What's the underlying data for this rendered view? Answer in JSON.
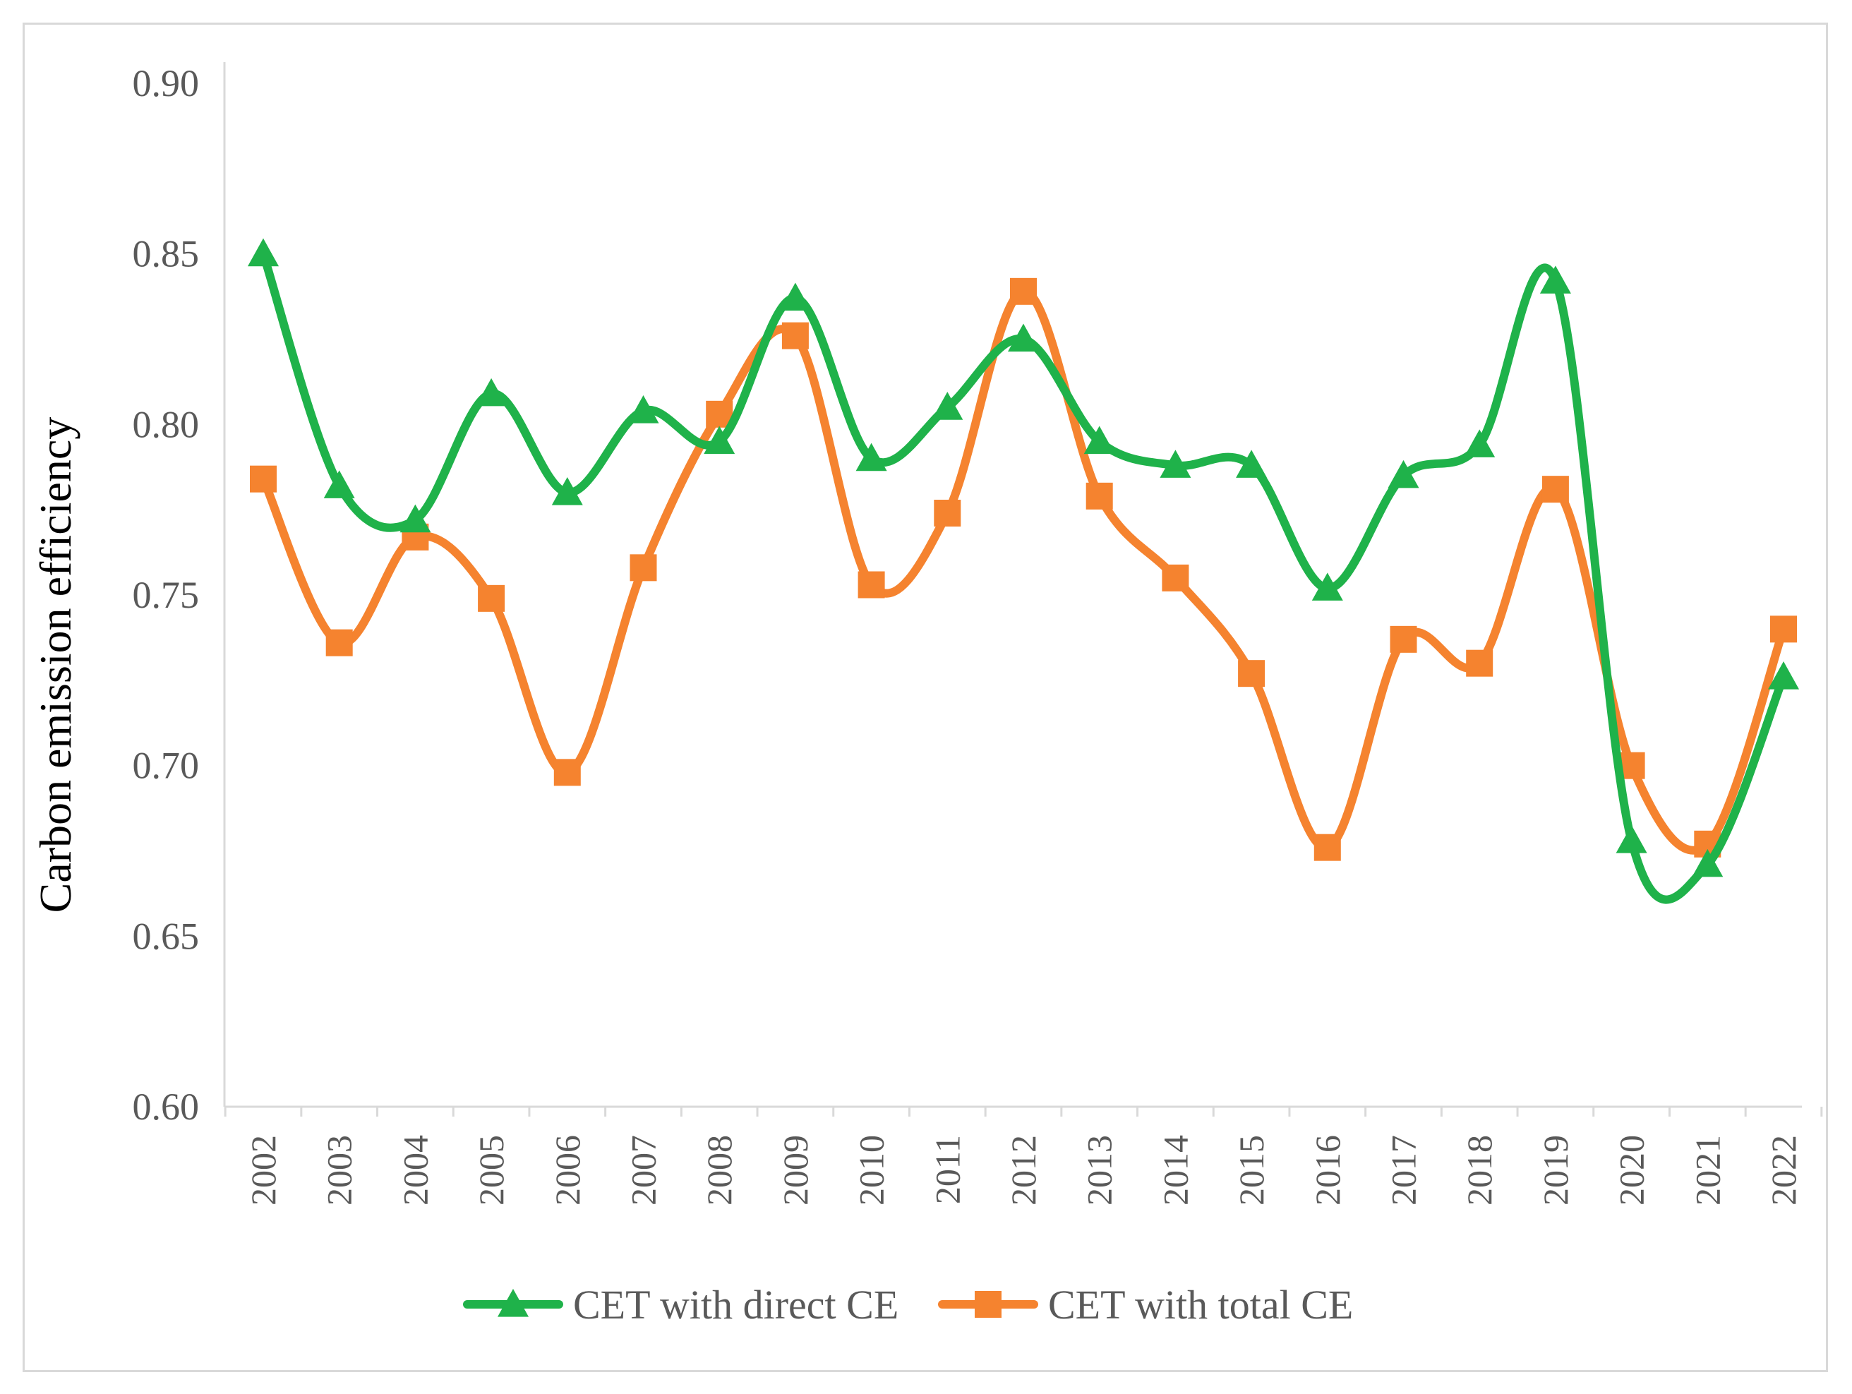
{
  "chart_data": {
    "type": "line",
    "title": "",
    "xlabel": "",
    "ylabel": "Carbon emission efficiency",
    "ylim": [
      0.6,
      0.9
    ],
    "yticks": [
      "0.60",
      "0.65",
      "0.70",
      "0.75",
      "0.80",
      "0.85",
      "0.90"
    ],
    "ytick_values": [
      0.6,
      0.65,
      0.7,
      0.75,
      0.8,
      0.85,
      0.9
    ],
    "categories": [
      "2002",
      "2003",
      "2004",
      "2005",
      "2006",
      "2007",
      "2008",
      "2009",
      "2010",
      "2011",
      "2012",
      "2013",
      "2014",
      "2015",
      "2016",
      "2017",
      "2018",
      "2019",
      "2020",
      "2021",
      "2022"
    ],
    "grid": false,
    "legend_position": "bottom",
    "series": [
      {
        "name": "CET with direct CE",
        "color": "#1fb24a",
        "marker": "triangle",
        "values": [
          0.85,
          0.782,
          0.772,
          0.809,
          0.78,
          0.804,
          0.795,
          0.837,
          0.79,
          0.805,
          0.825,
          0.795,
          0.788,
          0.788,
          0.752,
          0.785,
          0.794,
          0.842,
          0.678,
          0.671,
          0.726
        ]
      },
      {
        "name": "CET with total CE",
        "color": "#f5832f",
        "marker": "square",
        "values": [
          0.784,
          0.736,
          0.767,
          0.749,
          0.698,
          0.758,
          0.803,
          0.826,
          0.753,
          0.774,
          0.839,
          0.779,
          0.755,
          0.727,
          0.676,
          0.737,
          0.73,
          0.781,
          0.7,
          0.677,
          0.74
        ]
      }
    ]
  }
}
